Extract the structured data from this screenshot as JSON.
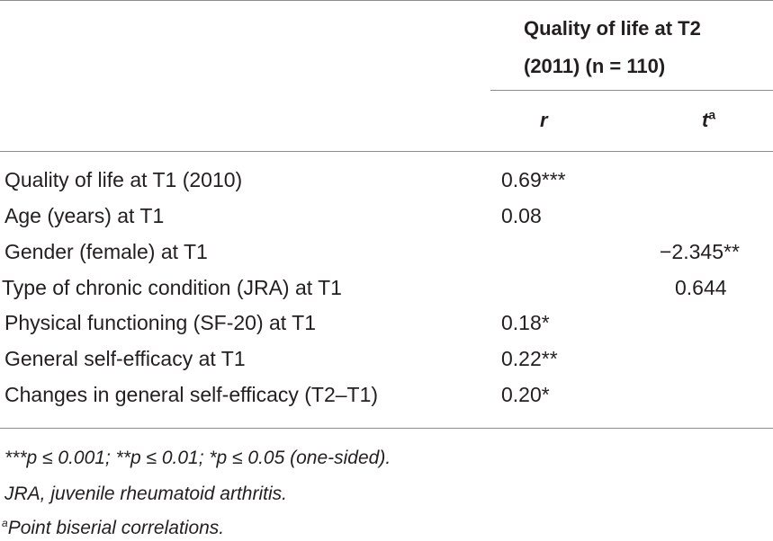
{
  "header": {
    "group_title_line1": "Quality of life at T2",
    "group_title_line2": "(2011) (n = 110)",
    "col_r": "r",
    "col_t": "t",
    "col_t_sup": "a"
  },
  "rows": [
    {
      "label": "Quality of life at T1 (2010)",
      "r": "0.69***",
      "t": ""
    },
    {
      "label": "Age (years) at T1",
      "r": "0.08",
      "t": ""
    },
    {
      "label": "Gender (female) at T1",
      "r": "",
      "t": "−2.345**"
    },
    {
      "label": "Type of chronic condition (JRA) at T1",
      "r": "",
      "t": "0.644"
    },
    {
      "label": "Physical functioning (SF-20) at T1",
      "r": "0.18*",
      "t": ""
    },
    {
      "label": "General self-efficacy at T1",
      "r": "0.22**",
      "t": ""
    },
    {
      "label": "Changes in general self-efficacy (T2–T1)",
      "r": "0.20*",
      "t": ""
    }
  ],
  "footnotes": {
    "significance": "***p ≤ 0.001; **p ≤ 0.01; *p ≤ 0.05 (one-sided).",
    "abbreviation": "JRA, juvenile rheumatoid arthritis.",
    "point_biserial_marker": "a",
    "point_biserial": "Point biserial correlations."
  }
}
